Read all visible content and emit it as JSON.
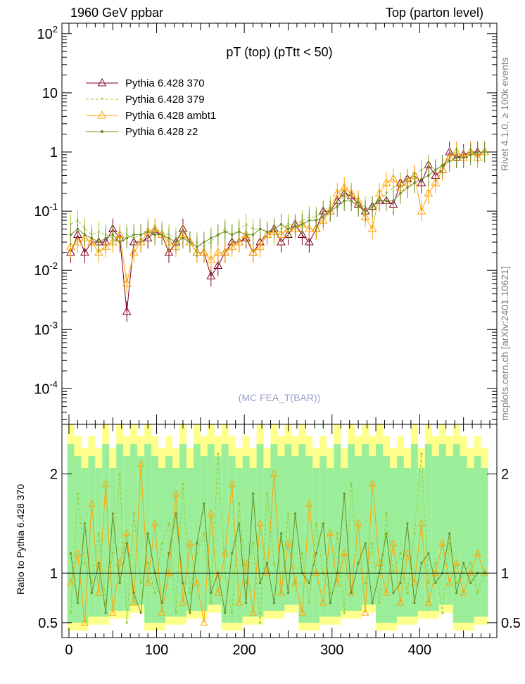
{
  "header": {
    "left": "1960 GeV ppbar",
    "right": "Top (parton level)"
  },
  "side_labels": {
    "top": "Rivet 4.1.0, ≥ 100k events",
    "bottom": "mcplots.cern.ch [arXiv:2401.10621]"
  },
  "watermark": "(MC FEA_T(BAR))",
  "chart_data": [
    {
      "panel": "main",
      "type": "line",
      "title": "pT (top) (pTtt < 50)",
      "xlabel": "",
      "ylabel": "",
      "xlim": [
        -8,
        488
      ],
      "ylim": [
        2.5e-05,
        150
      ],
      "yscale": "log",
      "y_tick_labels": [
        "10^-4",
        "10^-3",
        "10^-2",
        "10^-1",
        "1",
        "10",
        "10^2"
      ],
      "legend": {
        "placement": "top-left"
      },
      "x": [
        2,
        10,
        18,
        26,
        34,
        42,
        50,
        58,
        66,
        74,
        82,
        90,
        98,
        106,
        114,
        122,
        130,
        138,
        146,
        154,
        162,
        170,
        178,
        186,
        194,
        202,
        210,
        218,
        226,
        234,
        242,
        250,
        258,
        266,
        274,
        282,
        290,
        298,
        306,
        314,
        322,
        330,
        338,
        346,
        354,
        362,
        370,
        378,
        386,
        394,
        402,
        410,
        418,
        426,
        434,
        442,
        450,
        458,
        466,
        474
      ],
      "series": [
        {
          "name": "Pythia 6.428 370",
          "color": "#800020",
          "marker": "open-triangle",
          "dash": "solid",
          "values": [
            0.02,
            0.04,
            0.02,
            0.03,
            0.03,
            0.03,
            0.05,
            0.035,
            0.002,
            0.03,
            0.03,
            0.035,
            0.045,
            0.04,
            0.02,
            0.03,
            0.05,
            0.03,
            0.02,
            0.02,
            0.008,
            0.012,
            0.02,
            0.03,
            0.03,
            0.035,
            0.02,
            0.03,
            0.04,
            0.05,
            0.03,
            0.04,
            0.06,
            0.04,
            0.03,
            0.05,
            0.1,
            0.1,
            0.15,
            0.2,
            0.18,
            0.13,
            0.1,
            0.12,
            0.15,
            0.15,
            0.13,
            0.3,
            0.35,
            0.4,
            0.3,
            0.6,
            0.4,
            0.5,
            1.0,
            0.8,
            0.9,
            1.0,
            1.0,
            1.0
          ]
        },
        {
          "name": "Pythia 6.428 379",
          "color": "#9acd32",
          "marker": "star",
          "dash": "dashed",
          "values": [
            0.06,
            0.07,
            0.05,
            0.04,
            0.045,
            0.04,
            0.035,
            0.03,
            0.04,
            0.035,
            0.04,
            0.05,
            0.05,
            0.045,
            0.04,
            0.035,
            0.04,
            0.03,
            0.03,
            0.025,
            0.03,
            0.04,
            0.05,
            0.04,
            0.05,
            0.06,
            0.05,
            0.05,
            0.045,
            0.04,
            0.05,
            0.06,
            0.06,
            0.07,
            0.08,
            0.08,
            0.1,
            0.12,
            0.15,
            0.17,
            0.2,
            0.13,
            0.12,
            0.1,
            0.15,
            0.2,
            0.25,
            0.3,
            0.35,
            0.4,
            0.5,
            0.6,
            0.5,
            0.6,
            0.8,
            1.0,
            0.8,
            1.0,
            0.9,
            1.0
          ]
        },
        {
          "name": "Pythia 6.428 ambt1",
          "color": "#ffa500",
          "marker": "open-triangle",
          "dash": "solid",
          "values": [
            0.025,
            0.03,
            0.035,
            0.03,
            0.02,
            0.025,
            0.03,
            0.04,
            0.006,
            0.02,
            0.03,
            0.045,
            0.05,
            0.04,
            0.03,
            0.025,
            0.04,
            0.03,
            0.02,
            0.02,
            0.015,
            0.02,
            0.02,
            0.025,
            0.03,
            0.04,
            0.02,
            0.025,
            0.04,
            0.045,
            0.04,
            0.05,
            0.05,
            0.06,
            0.05,
            0.05,
            0.07,
            0.1,
            0.2,
            0.25,
            0.2,
            0.15,
            0.08,
            0.05,
            0.2,
            0.3,
            0.35,
            0.25,
            0.3,
            0.4,
            0.1,
            0.2,
            0.3,
            0.5,
            0.8,
            1.0,
            0.8,
            1.0,
            0.8,
            1.0
          ]
        },
        {
          "name": "Pythia 6.428 z2",
          "color": "#6b8e23",
          "marker": "dot",
          "dash": "solid",
          "values": [
            0.04,
            0.05,
            0.04,
            0.035,
            0.03,
            0.035,
            0.04,
            0.03,
            0.035,
            0.04,
            0.04,
            0.045,
            0.04,
            0.04,
            0.035,
            0.03,
            0.035,
            0.03,
            0.025,
            0.03,
            0.035,
            0.04,
            0.045,
            0.04,
            0.045,
            0.04,
            0.04,
            0.05,
            0.045,
            0.05,
            0.06,
            0.05,
            0.055,
            0.06,
            0.07,
            0.07,
            0.08,
            0.1,
            0.12,
            0.15,
            0.15,
            0.12,
            0.1,
            0.12,
            0.15,
            0.15,
            0.15,
            0.2,
            0.25,
            0.3,
            0.35,
            0.4,
            0.5,
            0.6,
            0.7,
            0.8,
            0.8,
            0.9,
            1.0,
            1.0
          ]
        }
      ]
    },
    {
      "panel": "ratio",
      "type": "line",
      "title": "",
      "xlabel": "",
      "ylabel": "Ratio to Pythia 6.428 370",
      "xlim": [
        -8,
        488
      ],
      "ylim": [
        0.35,
        2.5
      ],
      "y_ticks": [
        0.5,
        1,
        2
      ],
      "y_tick_labels": [
        "0.5",
        "1",
        "2"
      ],
      "x_ticks": [
        0,
        100,
        200,
        300,
        400
      ],
      "x_tick_labels": [
        "0",
        "100",
        "200",
        "300",
        "400"
      ],
      "band_colors": {
        "inner": "#9aee9a",
        "outer": "#ffff8c"
      },
      "reference_line": 1,
      "series_ratios": [
        [
          0.6,
          1.8,
          1.1,
          0.9,
          1.4,
          0.7,
          1.2,
          2.0,
          0.5,
          1.6,
          0.9,
          1.1,
          0.8,
          1.3,
          1.5,
          0.6,
          1.9,
          0.8,
          1.2,
          1.4,
          0.7,
          2.2,
          1.0,
          0.6,
          1.7,
          0.9,
          1.3,
          0.5,
          1.8,
          1.1,
          0.8,
          1.6,
          0.9,
          1.2,
          0.7,
          1.5,
          1.0,
          0.8,
          1.4,
          0.6,
          1.9,
          1.1,
          0.9,
          1.3,
          0.7,
          1.6,
          1.0,
          1.2,
          0.8,
          1.4,
          2.2,
          0.9,
          1.1,
          0.6,
          1.3,
          0.9,
          1.0,
          1.1,
          0.8,
          1.0
        ],
        [
          0.9,
          1.2,
          0.5,
          1.7,
          0.8,
          1.9,
          0.6,
          1.1,
          1.4,
          0.7,
          2.1,
          0.9,
          1.5,
          0.6,
          1.0,
          1.8,
          0.7,
          1.3,
          0.9,
          0.5,
          1.6,
          0.8,
          1.2,
          1.9,
          0.7,
          1.1,
          0.6,
          1.5,
          1.0,
          2.0,
          0.8,
          1.3,
          0.9,
          0.6,
          1.7,
          1.0,
          0.7,
          1.4,
          0.9,
          1.2,
          0.8,
          1.5,
          0.6,
          1.9,
          1.1,
          0.8,
          1.3,
          0.7,
          1.2,
          0.9,
          1.5,
          0.7,
          1.0,
          1.3,
          0.9,
          1.1,
          0.8,
          1.0,
          1.2,
          1.0
        ],
        [
          1.2,
          0.7,
          1.5,
          0.8,
          1.1,
          0.6,
          1.6,
          0.9,
          1.3,
          0.8,
          0.6,
          1.4,
          1.0,
          0.7,
          1.2,
          1.6,
          0.9,
          0.6,
          1.3,
          1.7,
          0.8,
          1.0,
          0.6,
          1.2,
          1.5,
          0.7,
          1.8,
          0.9,
          1.1,
          0.7,
          1.4,
          0.8,
          1.6,
          1.0,
          0.9,
          1.2,
          1.5,
          0.7,
          1.0,
          1.8,
          0.8,
          1.1,
          1.3,
          0.7,
          1.0,
          1.4,
          0.8,
          0.9,
          1.5,
          0.7,
          1.1,
          1.2,
          0.9,
          1.0,
          1.4,
          0.8,
          1.1,
          0.9,
          1.0,
          1.0
        ]
      ]
    }
  ]
}
